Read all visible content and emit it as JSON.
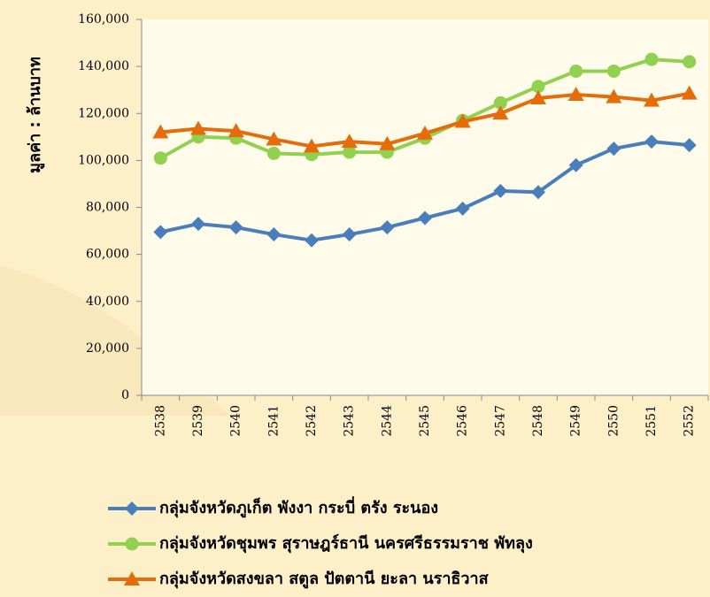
{
  "chart_data": {
    "type": "line",
    "ylabel": "มูลค่า : ล้านบาท",
    "categories": [
      "2538",
      "2539",
      "2540",
      "2541",
      "2542",
      "2543",
      "2544",
      "2545",
      "2546",
      "2547",
      "2548",
      "2549",
      "2550",
      "2551",
      "2552"
    ],
    "series": [
      {
        "name": "กลุ่มจังหวัดภูเก็ต พังงา กระบี่ ตรัง ระนอง",
        "color": "#4a7ebb",
        "marker": "diamond",
        "values": [
          69500,
          73000,
          71500,
          68500,
          66000,
          68500,
          71500,
          75500,
          79500,
          87000,
          86500,
          98000,
          105000,
          108000,
          106500
        ]
      },
      {
        "name": "กลุ่มจังหวัดชุมพร สุราษฎร์ธานี นครศรีธรรมราช พัทลุง",
        "color": "#92d050",
        "marker": "circle",
        "values": [
          101000,
          110000,
          109500,
          103000,
          102500,
          103500,
          103500,
          109500,
          117000,
          124500,
          131500,
          138000,
          138000,
          143000,
          142000
        ]
      },
      {
        "name": "กลุ่มจังหวัดสงขลา สตูล ปัตตานี ยะลา นราธิวาส",
        "color": "#e46c0a",
        "marker": "triangle",
        "values": [
          112000,
          113500,
          112500,
          109000,
          106000,
          108000,
          107000,
          111500,
          116500,
          120000,
          126500,
          128000,
          127000,
          125500,
          128500
        ]
      }
    ],
    "ylim": [
      0,
      160000
    ],
    "yticks": [
      0,
      {
        "value": 20000,
        "label": "20,000"
      },
      {
        "value": 40000,
        "label": "40,000"
      },
      {
        "value": 60000,
        "label": "60,000"
      },
      {
        "value": 80000,
        "label": "80,000"
      },
      {
        "value": 100000,
        "label": "100,000"
      },
      {
        "value": 120000,
        "label": "120,000"
      },
      {
        "value": 140000,
        "label": "140,000"
      },
      {
        "value": 160000,
        "label": "160,000"
      }
    ],
    "grid": false,
    "legend": "bottom"
  }
}
